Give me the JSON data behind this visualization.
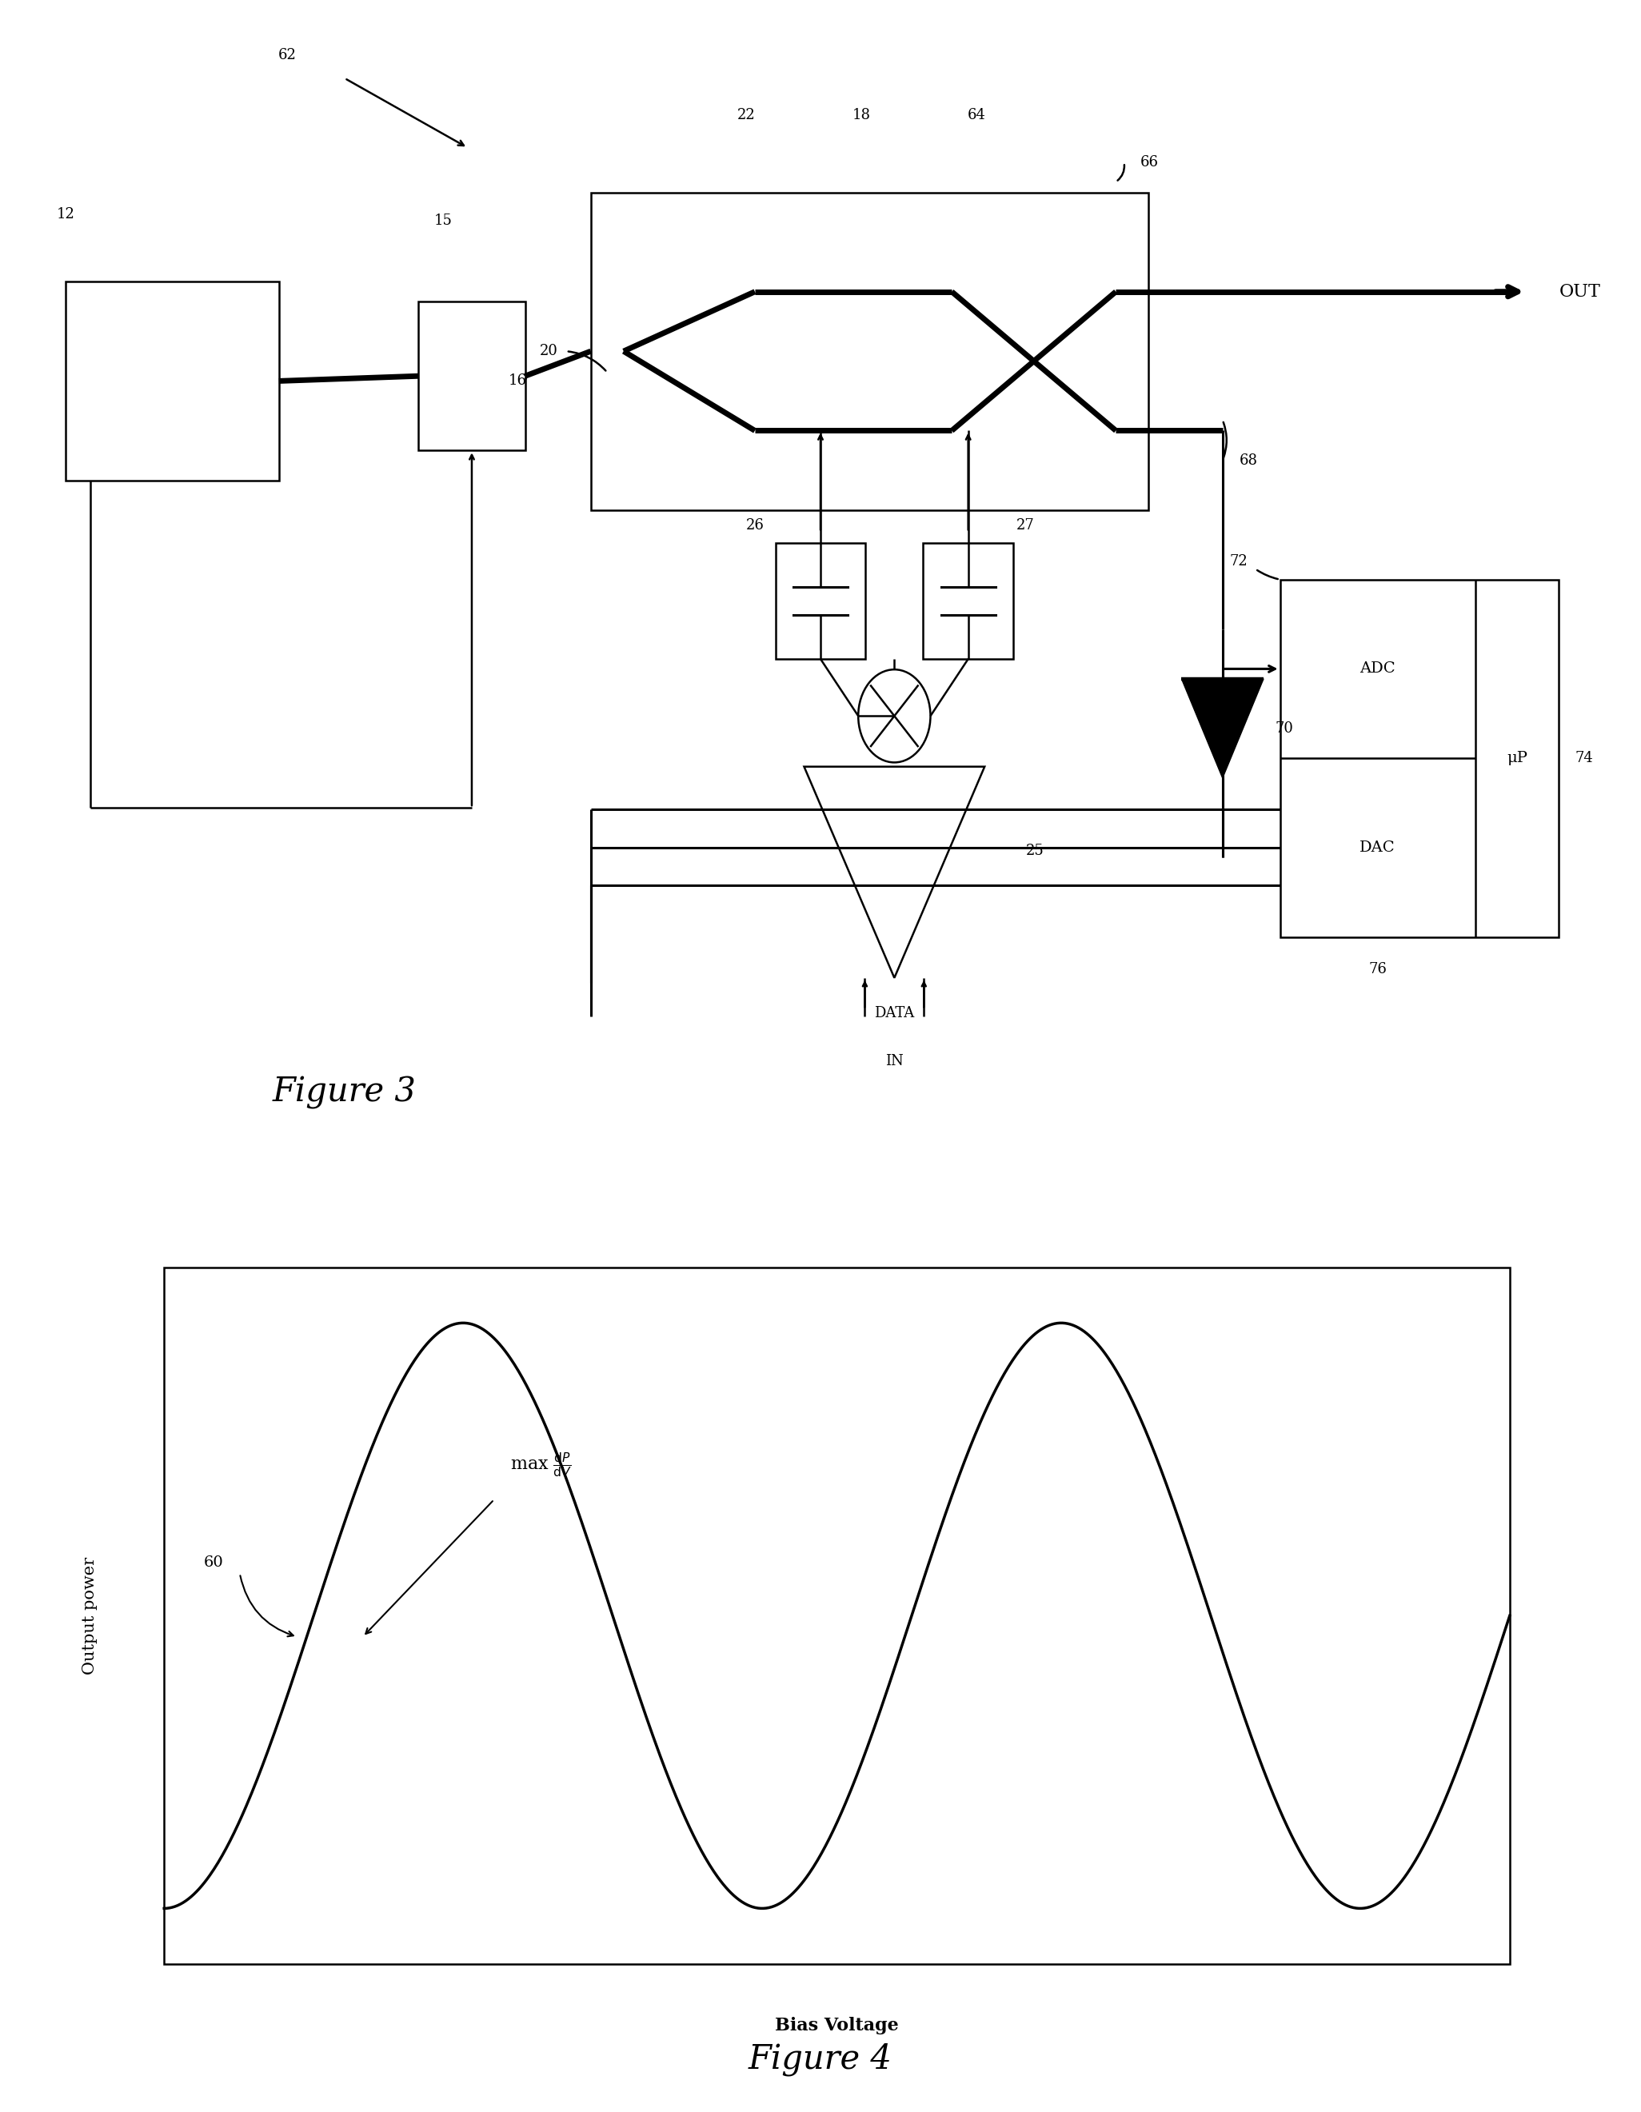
{
  "fig_width": 20.52,
  "fig_height": 26.41,
  "bg_color": "#ffffff",
  "fig3_title": "Figure 3",
  "fig4_title": "Figure 4",
  "fig4_xlabel": "Bias Voltage",
  "fig4_ylabel": "Output power",
  "lw_thin": 1.8,
  "lw_thick": 5.0,
  "lw_medium": 2.2,
  "fontsize_label": 13,
  "fontsize_fig": 30,
  "fontsize_out": 15
}
